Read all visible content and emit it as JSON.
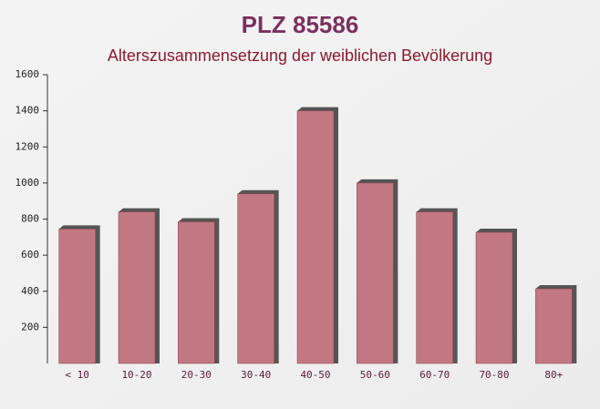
{
  "chart_data": {
    "type": "bar",
    "title": "PLZ 85586",
    "subtitle": "Alterszusammensetzung der weiblichen Bevölkerung",
    "categories": [
      "< 10",
      "10-20",
      "20-30",
      "30-40",
      "40-50",
      "50-60",
      "60-70",
      "70-80",
      "80+"
    ],
    "values": [
      745,
      840,
      785,
      940,
      1400,
      1000,
      840,
      727,
      414
    ],
    "color": "#b8636e",
    "ylim": [
      0,
      1600
    ],
    "yticks": [
      200,
      400,
      600,
      800,
      1000,
      1200,
      1400,
      1600
    ]
  }
}
